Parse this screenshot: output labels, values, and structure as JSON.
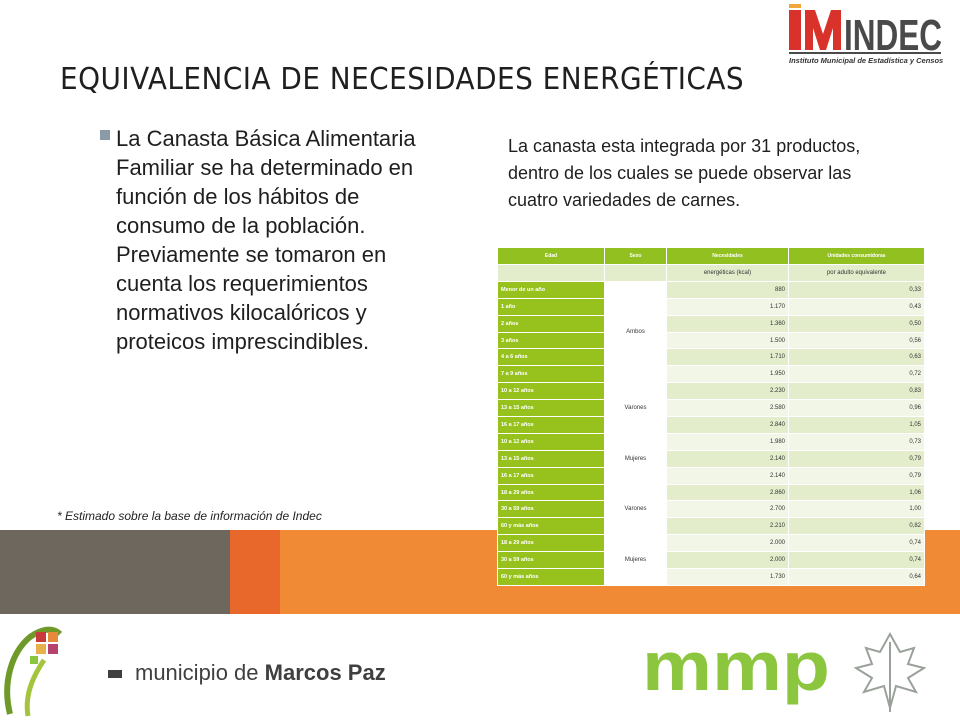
{
  "slide": {
    "title": "EQUIVALENCIA DE NECESIDADES ENERGÉTICAS",
    "bullet": "La Canasta Básica Alimentaria Familiar se ha determinado en función de los hábitos de consumo de la población. Previamente se tomaron en cuenta los requerimientos normativos kilocalóricos y proteicos imprescindibles.",
    "footnote": "* Estimado sobre la base de información de Indec",
    "right_text": "La canasta esta integrada por 31 productos, dentro de los cuales se puede observar las cuatro variedades de carnes."
  },
  "logos": {
    "indec_name": "INDEC",
    "indec_subtitle": "Instituto Municipal de Estadística y Censos",
    "municipio_prefix": "municipio de ",
    "municipio_name": "Marcos Paz",
    "mmp": "mmp"
  },
  "table": {
    "headers": [
      "Edad",
      "Sexo",
      "Necesidades",
      "Unidades consumidoras"
    ],
    "subheaders": [
      "",
      "",
      "energéticas (kcal)",
      "por adulto equivalente"
    ],
    "sexes": [
      "Ambos",
      "Varones",
      "Mujeres",
      "Varones",
      "Mujeres"
    ],
    "rows": [
      {
        "edad": "Menor de un año",
        "kcal": "880",
        "ua": "0,33"
      },
      {
        "edad": "1 año",
        "kcal": "1.170",
        "ua": "0,43"
      },
      {
        "edad": "2 años",
        "kcal": "1.360",
        "ua": "0,50"
      },
      {
        "edad": "3 años",
        "kcal": "1.500",
        "ua": "0,56"
      },
      {
        "edad": "4 a 6 años",
        "kcal": "1.710",
        "ua": "0,63"
      },
      {
        "edad": "7 a 9 años",
        "kcal": "1.950",
        "ua": "0,72"
      },
      {
        "edad": "10 a 12 años",
        "kcal": "2.230",
        "ua": "0,83"
      },
      {
        "edad": "13 a 15 años",
        "kcal": "2.580",
        "ua": "0,96"
      },
      {
        "edad": "16 a 17 años",
        "kcal": "2.840",
        "ua": "1,05"
      },
      {
        "edad": "10 a 12 años",
        "kcal": "1.980",
        "ua": "0,73"
      },
      {
        "edad": "13 a 15 años",
        "kcal": "2.140",
        "ua": "0,79"
      },
      {
        "edad": "16 a 17 años",
        "kcal": "2.140",
        "ua": "0,79"
      },
      {
        "edad": "18 a 29 años",
        "kcal": "2.860",
        "ua": "1,06"
      },
      {
        "edad": "30 a 59 años",
        "kcal": "2.700",
        "ua": "1,00"
      },
      {
        "edad": "60 y más años",
        "kcal": "2.210",
        "ua": "0,82"
      },
      {
        "edad": "18 a 29 años",
        "kcal": "2.000",
        "ua": "0,74"
      },
      {
        "edad": "30 a 59 años",
        "kcal": "2.000",
        "ua": "0,74"
      },
      {
        "edad": "60 y más años",
        "kcal": "1.730",
        "ua": "0,64"
      }
    ]
  },
  "colors": {
    "table_green": "#97c21e",
    "orange": "#f18a35",
    "gray_band": "#6e675d",
    "indec_red": "#d9322b",
    "mmp_green": "#8cc63f"
  },
  "icons": [
    "indec-logo-icon",
    "marcos-paz-emblem-icon",
    "leaf-icon"
  ]
}
